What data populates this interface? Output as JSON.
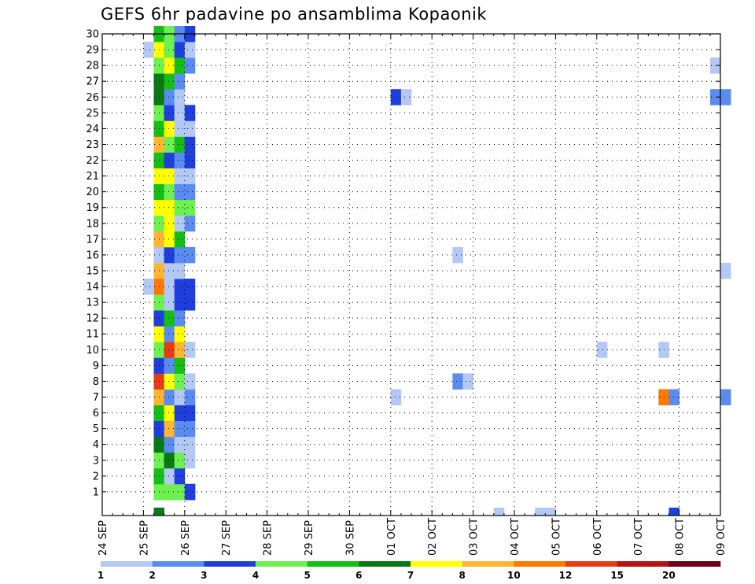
{
  "chart_data": {
    "type": "heatmap",
    "title": "GEFS 6hr padavine po ansamblima Kopaonik",
    "xlabel": "",
    "ylabel": "",
    "x_ticks": [
      "24 SEP",
      "25 SEP",
      "26 SEP",
      "27 SEP",
      "28 SEP",
      "29 SEP",
      "30 SEP",
      "01 OCT",
      "02 OCT",
      "03 OCT",
      "04 OCT",
      "05 OCT",
      "06 OCT",
      "07 OCT",
      "08 OCT",
      "09 OCT"
    ],
    "x_range": [
      "24 SEP 00z",
      "09 OCT 00z"
    ],
    "x_step_hours": 6,
    "y_ticks": [
      1,
      2,
      3,
      4,
      5,
      6,
      7,
      8,
      9,
      10,
      11,
      12,
      13,
      14,
      15,
      16,
      17,
      18,
      19,
      20,
      21,
      22,
      23,
      24,
      25,
      26,
      27,
      28,
      29,
      30
    ],
    "y_range": [
      0,
      30
    ],
    "grid": true,
    "colorbar": {
      "labels": [
        "1",
        "2",
        "3",
        "4",
        "5",
        "6",
        "7",
        "8",
        "10",
        "12",
        "15",
        "20"
      ],
      "bins": [
        {
          "from": 1,
          "to": 2,
          "color": "#b4c8f5"
        },
        {
          "from": 2,
          "to": 3,
          "color": "#5a8cf0"
        },
        {
          "from": 3,
          "to": 4,
          "color": "#1e3fdc"
        },
        {
          "from": 4,
          "to": 5,
          "color": "#6ef050"
        },
        {
          "from": 5,
          "to": 6,
          "color": "#14be14"
        },
        {
          "from": 6,
          "to": 7,
          "color": "#0a7814"
        },
        {
          "from": 7,
          "to": 8,
          "color": "#ffff00"
        },
        {
          "from": 8,
          "to": 10,
          "color": "#ffb432"
        },
        {
          "from": 10,
          "to": 12,
          "color": "#ff7800"
        },
        {
          "from": 12,
          "to": 15,
          "color": "#e63c14"
        },
        {
          "from": 15,
          "to": 20,
          "color": "#b41414"
        },
        {
          "from": 20,
          "to": null,
          "color": "#700014"
        }
      ]
    },
    "cells": [
      [
        5,
        0,
        6
      ],
      [
        5,
        1,
        6
      ],
      [
        6,
        1,
        5
      ],
      [
        7,
        1,
        5
      ],
      [
        8,
        1,
        3
      ],
      [
        5,
        1,
        4
      ],
      [
        6,
        1,
        4
      ],
      [
        7,
        1,
        4
      ],
      [
        8,
        1,
        3
      ],
      [
        5,
        2,
        5
      ],
      [
        6,
        2,
        1
      ],
      [
        7,
        2,
        3
      ],
      [
        5,
        3,
        4
      ],
      [
        6,
        3,
        6
      ],
      [
        7,
        3,
        4
      ],
      [
        8,
        3,
        1
      ],
      [
        5,
        4,
        6
      ],
      [
        6,
        4,
        2
      ],
      [
        7,
        4,
        1
      ],
      [
        8,
        4,
        1
      ],
      [
        5,
        5,
        3
      ],
      [
        6,
        5,
        8
      ],
      [
        7,
        5,
        2
      ],
      [
        8,
        5,
        2
      ],
      [
        5,
        6,
        5
      ],
      [
        6,
        6,
        7
      ],
      [
        7,
        6,
        3
      ],
      [
        8,
        6,
        3
      ],
      [
        5,
        7,
        8
      ],
      [
        6,
        7,
        2
      ],
      [
        7,
        7,
        1
      ],
      [
        8,
        7,
        2
      ],
      [
        5,
        8,
        12
      ],
      [
        6,
        8,
        7
      ],
      [
        7,
        8,
        4
      ],
      [
        8,
        8,
        1
      ],
      [
        5,
        9,
        3
      ],
      [
        6,
        9,
        2
      ],
      [
        7,
        9,
        5
      ],
      [
        5,
        10,
        4
      ],
      [
        6,
        10,
        12
      ],
      [
        7,
        10,
        8
      ],
      [
        8,
        10,
        1
      ],
      [
        5,
        11,
        7
      ],
      [
        6,
        11,
        2
      ],
      [
        7,
        11,
        7
      ],
      [
        5,
        12,
        3
      ],
      [
        6,
        12,
        5
      ],
      [
        7,
        12,
        2
      ],
      [
        5,
        13,
        4
      ],
      [
        6,
        13,
        1
      ],
      [
        7,
        13,
        3
      ],
      [
        8,
        13,
        3
      ],
      [
        5,
        14,
        10
      ],
      [
        6,
        14,
        1
      ],
      [
        7,
        14,
        3
      ],
      [
        8,
        14,
        3
      ],
      [
        4,
        14,
        1
      ],
      [
        5,
        15,
        8
      ],
      [
        6,
        15,
        1
      ],
      [
        7,
        15,
        1
      ],
      [
        5,
        16,
        1
      ],
      [
        6,
        16,
        3
      ],
      [
        7,
        16,
        2
      ],
      [
        8,
        16,
        2
      ],
      [
        5,
        17,
        8
      ],
      [
        6,
        17,
        7
      ],
      [
        7,
        17,
        5
      ],
      [
        5,
        18,
        4
      ],
      [
        6,
        18,
        7
      ],
      [
        7,
        18,
        1
      ],
      [
        8,
        18,
        2
      ],
      [
        5,
        19,
        7
      ],
      [
        6,
        19,
        7
      ],
      [
        7,
        19,
        4
      ],
      [
        8,
        19,
        4
      ],
      [
        5,
        20,
        5
      ],
      [
        6,
        20,
        4
      ],
      [
        7,
        20,
        2
      ],
      [
        8,
        20,
        2
      ],
      [
        5,
        21,
        7
      ],
      [
        6,
        21,
        7
      ],
      [
        7,
        21,
        1
      ],
      [
        8,
        21,
        1
      ],
      [
        5,
        22,
        5
      ],
      [
        6,
        22,
        3
      ],
      [
        7,
        22,
        2
      ],
      [
        8,
        22,
        3
      ],
      [
        5,
        23,
        8
      ],
      [
        6,
        23,
        4
      ],
      [
        7,
        23,
        5
      ],
      [
        8,
        23,
        3
      ],
      [
        5,
        24,
        5
      ],
      [
        6,
        24,
        7
      ],
      [
        7,
        24,
        1
      ],
      [
        8,
        24,
        1
      ],
      [
        5,
        25,
        4
      ],
      [
        6,
        25,
        3
      ],
      [
        7,
        25,
        1
      ],
      [
        8,
        25,
        3
      ],
      [
        5,
        26,
        6
      ],
      [
        6,
        26,
        2
      ],
      [
        7,
        26,
        1
      ],
      [
        5,
        27,
        6
      ],
      [
        6,
        27,
        5
      ],
      [
        7,
        27,
        2
      ],
      [
        5,
        28,
        4
      ],
      [
        6,
        28,
        7
      ],
      [
        7,
        28,
        5
      ],
      [
        8,
        28,
        2
      ],
      [
        4,
        29,
        1
      ],
      [
        5,
        29,
        7
      ],
      [
        6,
        29,
        4
      ],
      [
        7,
        29,
        3
      ],
      [
        8,
        29,
        1
      ],
      [
        5,
        30,
        5
      ],
      [
        6,
        30,
        4
      ],
      [
        7,
        30,
        2
      ],
      [
        8,
        30,
        3
      ],
      [
        28,
        26,
        3
      ],
      [
        29,
        26,
        1
      ],
      [
        28,
        7,
        1
      ],
      [
        34,
        16,
        1
      ],
      [
        34,
        8,
        2
      ],
      [
        35,
        8,
        1
      ],
      [
        38,
        0,
        1
      ],
      [
        42,
        0,
        1
      ],
      [
        43,
        0,
        1
      ],
      [
        48,
        10,
        1
      ],
      [
        55,
        0,
        3
      ],
      [
        54,
        10,
        1
      ],
      [
        54,
        7,
        10
      ],
      [
        55,
        7,
        2
      ],
      [
        59,
        28,
        1
      ],
      [
        59,
        26,
        2
      ],
      [
        60,
        26,
        2
      ],
      [
        60,
        15,
        1
      ],
      [
        60,
        7,
        2
      ]
    ]
  }
}
